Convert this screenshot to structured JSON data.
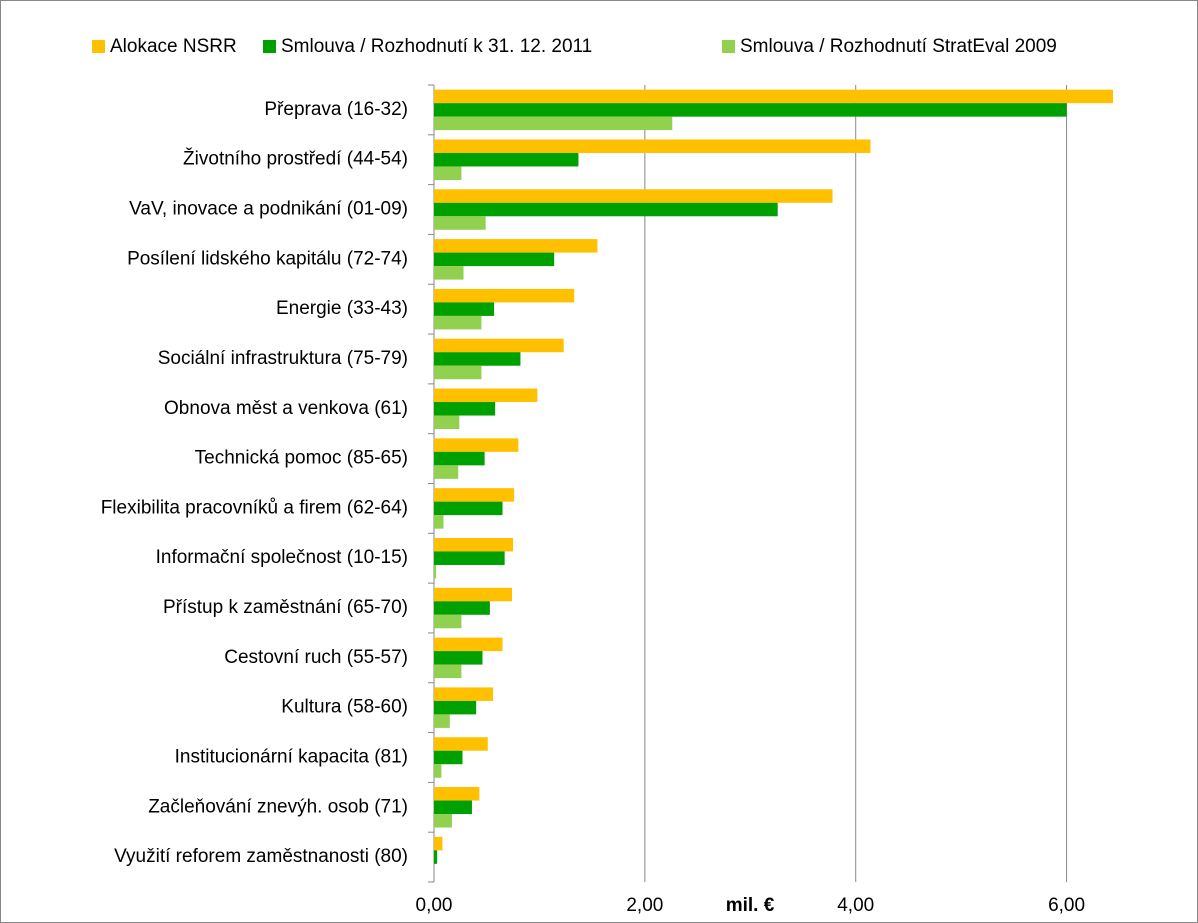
{
  "chart_data": {
    "type": "barh",
    "categories": [
      "Přeprava (16-32)",
      "Životního prostředí (44-54)",
      "VaV, inovace a podnikání (01-09)",
      "Posílení lidského kapitálu (72-74)",
      "Energie (33-43)",
      "Sociální infrastruktura (75-79)",
      "Obnova měst a venkova (61)",
      "Technická pomoc (85-65)",
      "Flexibilita pracovníků a firem (62-64)",
      "Informační společnost (10-15)",
      "Přístup k zaměstnání (65-70)",
      "Cestovní ruch (55-57)",
      "Kultura (58-60)",
      "Institucionární kapacita (81)",
      "Začleňování znevýh. osob (71)",
      "Využití reforem zaměstnanosti (80)"
    ],
    "series": [
      {
        "name": "Alokace NSRR",
        "color": "#ffc000",
        "values": [
          6.44,
          4.14,
          3.78,
          1.55,
          1.33,
          1.23,
          0.98,
          0.8,
          0.76,
          0.75,
          0.74,
          0.65,
          0.56,
          0.51,
          0.43,
          0.08
        ]
      },
      {
        "name": "Smlouva / Rozhodnutí k 31. 12. 2011",
        "color": "#00a000",
        "values": [
          6.0,
          1.37,
          3.26,
          1.14,
          0.57,
          0.82,
          0.58,
          0.48,
          0.65,
          0.67,
          0.53,
          0.46,
          0.4,
          0.27,
          0.36,
          0.03
        ]
      },
      {
        "name": "Smlouva / Rozhodnutí StratEval 2009",
        "color": "#92d050",
        "values": [
          2.26,
          0.26,
          0.49,
          0.28,
          0.45,
          0.45,
          0.24,
          0.23,
          0.09,
          0.02,
          0.26,
          0.26,
          0.15,
          0.07,
          0.17,
          0.0
        ]
      }
    ],
    "xlabel": "mil. €",
    "xlim": [
      0,
      7
    ],
    "xticks": [
      {
        "value": 0,
        "label": "0,00"
      },
      {
        "value": 2,
        "label": "2,00"
      },
      {
        "value": 4,
        "label": "4,00"
      },
      {
        "value": 6,
        "label": "6,00"
      }
    ],
    "grid": true,
    "legend": "top"
  }
}
